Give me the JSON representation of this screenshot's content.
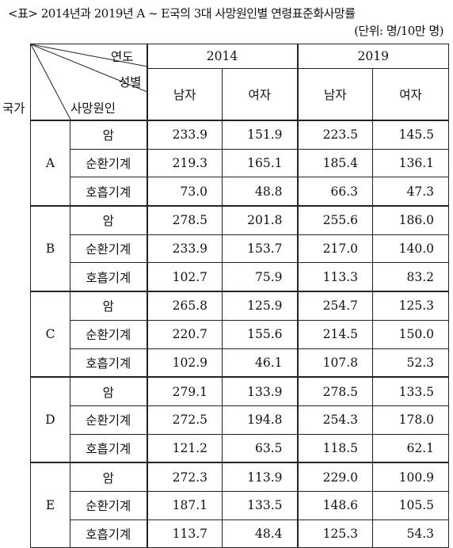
{
  "title": "<표> 2014년과 2019년 A ~ E국의 3대 사망원인별 연령표준화사망률",
  "unit": "(단위: 명/10만 명)",
  "header": {
    "year_label": "연도",
    "sex_label": "성별",
    "country_label": "국가",
    "cause_label": "사망원인",
    "years": [
      "2014",
      "2019"
    ],
    "sexes": [
      "남자",
      "여자",
      "남자",
      "여자"
    ]
  },
  "causes": [
    "암",
    "순환기계",
    "호흡기계"
  ],
  "rows": [
    {
      "country": "A",
      "values": [
        [
          233.9,
          151.9,
          223.5,
          145.5
        ],
        [
          219.3,
          165.1,
          185.4,
          136.1
        ],
        [
          73.0,
          48.8,
          66.3,
          47.3
        ]
      ]
    },
    {
      "country": "B",
      "values": [
        [
          278.5,
          201.8,
          255.6,
          186.0
        ],
        [
          233.9,
          153.7,
          217.0,
          140.0
        ],
        [
          102.7,
          75.9,
          113.3,
          83.2
        ]
      ]
    },
    {
      "country": "C",
      "values": [
        [
          265.8,
          125.9,
          254.7,
          125.3
        ],
        [
          220.7,
          155.6,
          214.5,
          150.0
        ],
        [
          102.9,
          46.1,
          107.8,
          52.3
        ]
      ]
    },
    {
      "country": "D",
      "values": [
        [
          279.1,
          133.9,
          278.5,
          133.5
        ],
        [
          272.5,
          194.8,
          254.3,
          178.0
        ],
        [
          121.2,
          63.5,
          118.5,
          62.1
        ]
      ]
    },
    {
      "country": "E",
      "values": [
        [
          272.3,
          113.9,
          229.0,
          100.9
        ],
        [
          187.1,
          133.5,
          148.6,
          105.5
        ],
        [
          113.7,
          48.4,
          125.3,
          54.3
        ]
      ]
    }
  ]
}
